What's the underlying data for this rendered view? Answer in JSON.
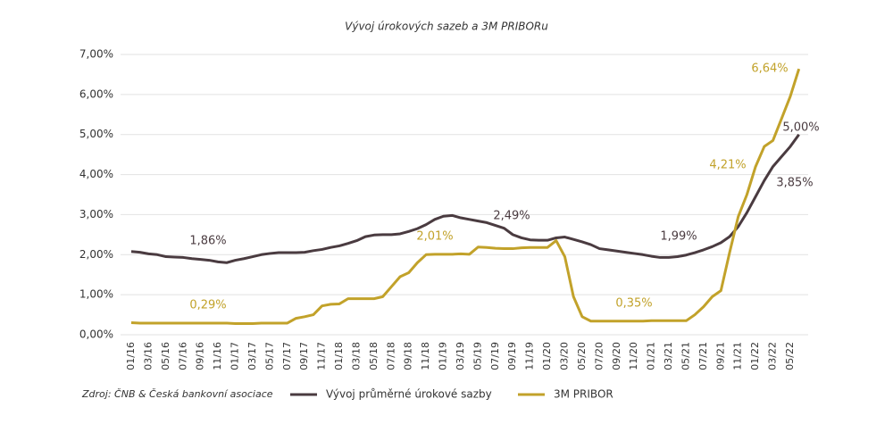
{
  "chart_data": {
    "type": "line",
    "title": "Vývoj úrokových sazeb a 3M PRIBORu",
    "source": "Zdroj: ČNB & Česká bankovní asociace",
    "categories": [
      "01/16",
      null,
      "03/16",
      null,
      "05/16",
      null,
      "07/16",
      null,
      "09/16",
      null,
      "11/16",
      null,
      "01/17",
      null,
      "03/17",
      null,
      "05/17",
      null,
      "07/17",
      null,
      "09/17",
      null,
      "11/17",
      null,
      "01/18",
      null,
      "03/18",
      null,
      "05/18",
      null,
      "07/18",
      null,
      "09/18",
      null,
      "11/18",
      null,
      "01/19",
      null,
      "03/19",
      null,
      "05/19",
      null,
      "07/19",
      null,
      "09/19",
      null,
      "11/19",
      null,
      "01/20",
      null,
      "03/20",
      null,
      "05/20",
      null,
      "07/20",
      null,
      "09/20",
      null,
      "11/20",
      null,
      "01/21",
      null,
      "03/21",
      null,
      "05/21",
      null,
      "07/21",
      null,
      "09/21",
      null,
      "11/21",
      null,
      "01/22",
      null,
      "03/22",
      null,
      "05/22",
      null
    ],
    "series": [
      {
        "name": "Vývoj průměrné úrokové sazby",
        "color": "#4a3b40",
        "values": [
          2.08,
          2.06,
          2.02,
          2.0,
          1.95,
          1.94,
          1.93,
          1.9,
          1.88,
          1.86,
          1.82,
          1.8,
          1.86,
          1.9,
          1.95,
          2.0,
          2.03,
          2.05,
          2.05,
          2.05,
          2.06,
          2.1,
          2.13,
          2.18,
          2.22,
          2.28,
          2.35,
          2.45,
          2.49,
          2.5,
          2.5,
          2.52,
          2.58,
          2.65,
          2.75,
          2.88,
          2.96,
          2.98,
          2.92,
          2.88,
          2.84,
          2.8,
          2.73,
          2.66,
          2.5,
          2.42,
          2.37,
          2.36,
          2.36,
          2.42,
          2.44,
          2.38,
          2.32,
          2.25,
          2.15,
          2.12,
          2.09,
          2.06,
          2.03,
          2.0,
          1.96,
          1.93,
          1.93,
          1.95,
          1.99,
          2.05,
          2.12,
          2.2,
          2.3,
          2.45,
          2.7,
          3.05,
          3.45,
          3.85,
          4.2,
          4.45,
          4.7,
          5.0
        ]
      },
      {
        "name": "3M PRIBOR",
        "color": "#c2a22a",
        "values": [
          0.3,
          0.29,
          0.29,
          0.29,
          0.29,
          0.29,
          0.29,
          0.29,
          0.29,
          0.29,
          0.29,
          0.29,
          0.28,
          0.28,
          0.28,
          0.29,
          0.29,
          0.29,
          0.29,
          0.41,
          0.45,
          0.5,
          0.72,
          0.76,
          0.77,
          0.9,
          0.9,
          0.9,
          0.9,
          0.95,
          1.2,
          1.45,
          1.55,
          1.8,
          2.0,
          2.01,
          2.01,
          2.01,
          2.02,
          2.01,
          2.19,
          2.18,
          2.16,
          2.15,
          2.15,
          2.17,
          2.18,
          2.18,
          2.18,
          2.35,
          1.95,
          0.95,
          0.45,
          0.34,
          0.34,
          0.34,
          0.34,
          0.34,
          0.34,
          0.34,
          0.35,
          0.35,
          0.35,
          0.35,
          0.35,
          0.5,
          0.7,
          0.95,
          1.1,
          2.05,
          2.95,
          3.5,
          4.2,
          4.7,
          4.85,
          5.4,
          5.95,
          6.64
        ]
      }
    ],
    "annotations": [
      {
        "text": "1,86%",
        "color": "#4a3b40"
      },
      {
        "text": "0,29%",
        "color": "#c2a22a"
      },
      {
        "text": "2,01%",
        "color": "#c2a22a"
      },
      {
        "text": "2,49%",
        "color": "#4a3b40"
      },
      {
        "text": "0,35%",
        "color": "#c2a22a"
      },
      {
        "text": "1,99%",
        "color": "#4a3b40"
      },
      {
        "text": "4,21%",
        "color": "#c2a22a"
      },
      {
        "text": "3,85%",
        "color": "#4a3b40"
      },
      {
        "text": "5,00%",
        "color": "#4a3b40"
      },
      {
        "text": "6,64%",
        "color": "#c2a22a"
      }
    ],
    "ylim": [
      0,
      7
    ],
    "yticks": [
      {
        "value": 0,
        "label": "0,00%"
      },
      {
        "value": 1,
        "label": "1,00%"
      },
      {
        "value": 2,
        "label": "2,00%"
      },
      {
        "value": 3,
        "label": "3,00%"
      },
      {
        "value": 4,
        "label": "4,00%"
      },
      {
        "value": 5,
        "label": "5,00%"
      },
      {
        "value": 6,
        "label": "6,00%"
      },
      {
        "value": 7,
        "label": "7,00%"
      }
    ],
    "grid": true
  }
}
